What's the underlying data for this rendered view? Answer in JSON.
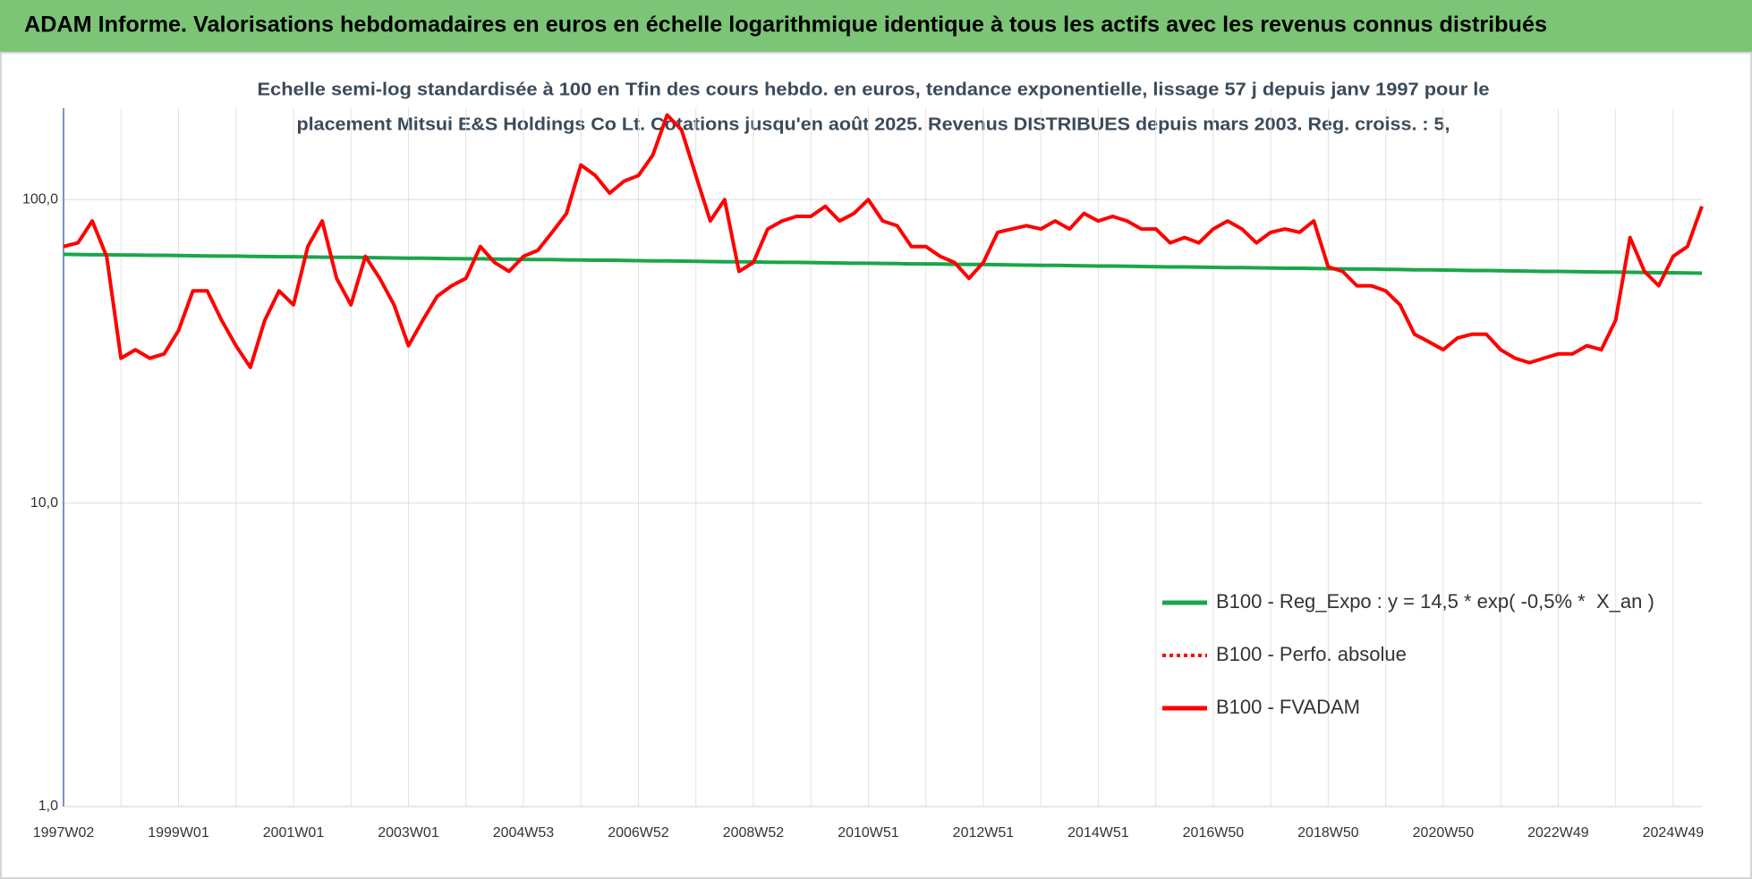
{
  "chart_data": {
    "type": "line",
    "title": "ADAM Informe. Valorisations hebdomadaires en euros en échelle logarithmique identique à tous les actifs avec les revenus connus distribués",
    "subtitle": [
      "Echelle semi-log standardisée à 100 en Tfin des cours hebdo. en euros, tendance exponentielle, lissage 57 j depuis janv 1997 pour le",
      "placement Mitsui E&S Holdings Co Lt. Cotations jusqu'en août 2025. Revenus DISTRIBUES depuis mars 2003. Reg. croiss. : 5,"
    ],
    "log_scale": true,
    "grid": true,
    "legend": "right",
    "ylim": [
      1,
      200
    ],
    "yticks": [
      {
        "value": 1,
        "label": "1,0"
      },
      {
        "value": 10,
        "label": "10,0"
      },
      {
        "value": 100,
        "label": "100,0"
      }
    ],
    "categories": [
      "1997W02",
      null,
      null,
      null,
      null,
      null,
      null,
      null,
      "1999W01",
      null,
      null,
      null,
      null,
      null,
      null,
      null,
      "2001W01",
      null,
      null,
      null,
      null,
      null,
      null,
      null,
      "2003W01",
      null,
      null,
      null,
      null,
      null,
      null,
      null,
      "2004W53",
      null,
      null,
      null,
      null,
      null,
      null,
      null,
      "2006W52",
      null,
      null,
      null,
      null,
      null,
      null,
      null,
      "2008W52",
      null,
      null,
      null,
      null,
      null,
      null,
      null,
      "2010W51",
      null,
      null,
      null,
      null,
      null,
      null,
      null,
      "2012W51",
      null,
      null,
      null,
      null,
      null,
      null,
      null,
      "2014W51",
      null,
      null,
      null,
      null,
      null,
      null,
      null,
      "2016W50",
      null,
      null,
      null,
      null,
      null,
      null,
      null,
      "2018W50",
      null,
      null,
      null,
      null,
      null,
      null,
      null,
      "2020W50",
      null,
      null,
      null,
      null,
      null,
      null,
      null,
      "2022W49",
      null,
      null,
      null,
      null,
      null,
      null,
      null,
      "2024W49",
      null,
      null
    ],
    "series": [
      {
        "name": "B100 - Reg_Expo : y = 14,5 * exp( -0,5% *  X_an )",
        "color": "#1aa64a",
        "style": "solid",
        "values": [
          66.0,
          65.9,
          65.8,
          65.8,
          65.7,
          65.6,
          65.5,
          65.5,
          65.4,
          65.3,
          65.2,
          65.1,
          65.1,
          65.0,
          64.9,
          64.8,
          64.8,
          64.7,
          64.6,
          64.5,
          64.5,
          64.4,
          64.3,
          64.2,
          64.1,
          64.1,
          64.0,
          63.9,
          63.8,
          63.8,
          63.7,
          63.6,
          63.5,
          63.4,
          63.4,
          63.3,
          63.2,
          63.1,
          63.1,
          63.0,
          62.9,
          62.8,
          62.8,
          62.7,
          62.6,
          62.5,
          62.4,
          62.4,
          62.3,
          62.2,
          62.1,
          62.1,
          62.0,
          61.9,
          61.8,
          61.7,
          61.7,
          61.6,
          61.5,
          61.4,
          61.4,
          61.3,
          61.2,
          61.1,
          61.1,
          61.0,
          60.9,
          60.8,
          60.7,
          60.7,
          60.6,
          60.5,
          60.4,
          60.4,
          60.3,
          60.2,
          60.1,
          60.0,
          60.0,
          59.9,
          59.8,
          59.7,
          59.7,
          59.6,
          59.5,
          59.4,
          59.4,
          59.3,
          59.2,
          59.1,
          59.0,
          59.0,
          58.9,
          58.8,
          58.7,
          58.7,
          58.6,
          58.5,
          58.4,
          58.4,
          58.3,
          58.2,
          58.1,
          58.0,
          58.0,
          57.9,
          57.8,
          57.7,
          57.7,
          57.6,
          57.5,
          57.4,
          57.4,
          57.3,
          57.2
        ]
      },
      {
        "name": "B100 - Perfo. absolue",
        "color": "#ff0000",
        "style": "dotted",
        "values": [
          70,
          72,
          85,
          65,
          30,
          32,
          30,
          31,
          37,
          50,
          50,
          40,
          33,
          28,
          40,
          50,
          45,
          70,
          85,
          55,
          45,
          65,
          55,
          45,
          33,
          40,
          48,
          52,
          55,
          70,
          62,
          58,
          65,
          68,
          78,
          90,
          130,
          120,
          105,
          115,
          120,
          140,
          190,
          170,
          120,
          85,
          100,
          58,
          62,
          80,
          85,
          88,
          88,
          95,
          85,
          90,
          100,
          85,
          82,
          70,
          70,
          65,
          62,
          55,
          62,
          78,
          80,
          82,
          80,
          85,
          80,
          90,
          85,
          88,
          85,
          80,
          80,
          72,
          75,
          72,
          80,
          85,
          80,
          72,
          78,
          80,
          78,
          85,
          60,
          58,
          52,
          52,
          50,
          45,
          36,
          34,
          32,
          35,
          36,
          36,
          32,
          30,
          29,
          30,
          31,
          31,
          33,
          32,
          40,
          75,
          58,
          52,
          65,
          70,
          95
        ]
      },
      {
        "name": "B100 - FVADAM",
        "color": "#ff0000",
        "style": "solid",
        "values": [
          70,
          72,
          85,
          65,
          30,
          32,
          30,
          31,
          37,
          50,
          50,
          40,
          33,
          28,
          40,
          50,
          45,
          70,
          85,
          55,
          45,
          65,
          55,
          45,
          33,
          40,
          48,
          52,
          55,
          70,
          62,
          58,
          65,
          68,
          78,
          90,
          130,
          120,
          105,
          115,
          120,
          140,
          190,
          170,
          120,
          85,
          100,
          58,
          62,
          80,
          85,
          88,
          88,
          95,
          85,
          90,
          100,
          85,
          82,
          70,
          70,
          65,
          62,
          55,
          62,
          78,
          80,
          82,
          80,
          85,
          80,
          90,
          85,
          88,
          85,
          80,
          80,
          72,
          75,
          72,
          80,
          85,
          80,
          72,
          78,
          80,
          78,
          85,
          60,
          58,
          52,
          52,
          50,
          45,
          36,
          34,
          32,
          35,
          36,
          36,
          32,
          30,
          29,
          30,
          31,
          31,
          33,
          32,
          40,
          75,
          58,
          52,
          65,
          70,
          95
        ]
      }
    ]
  }
}
